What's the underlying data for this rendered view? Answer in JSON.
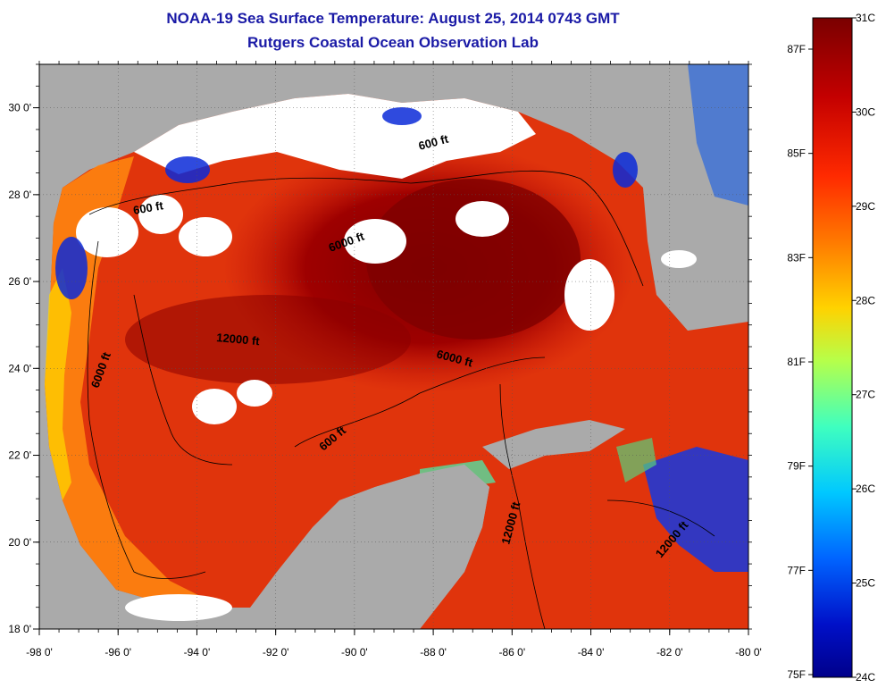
{
  "header": {
    "title": "NOAA-19 Sea Surface Temperature:  August 25, 2014 0743 GMT",
    "subtitle": "Rutgers Coastal Ocean Observation Lab"
  },
  "axes": {
    "lon_ticks": [
      "-98 0'",
      "-96 0'",
      "-94 0'",
      "-92 0'",
      "-90 0'",
      "-88 0'",
      "-86 0'",
      "-84 0'",
      "-82 0'",
      "-80 0'"
    ],
    "lat_ticks": [
      "30 0'",
      "28 0'",
      "26 0'",
      "24 0'",
      "22 0'",
      "20 0'",
      "18 0'"
    ],
    "lon_range": [
      -98,
      -80
    ],
    "lat_range": [
      18,
      31
    ]
  },
  "contour_labels": [
    "600 ft",
    "600 ft",
    "6000 ft",
    "12000 ft",
    "6000 ft",
    "6000 ft",
    "600 ft",
    "12000 ft",
    "12000 ft"
  ],
  "colorbar": {
    "celsius": [
      "31C",
      "30C",
      "29C",
      "28C",
      "27C",
      "26C",
      "25C",
      "24C"
    ],
    "fahrenheit": [
      "87F",
      "85F",
      "83F",
      "81F",
      "79F",
      "77F",
      "75F"
    ],
    "colors": [
      "#7a0000",
      "#c40000",
      "#ff2a00",
      "#ff7a00",
      "#ffd200",
      "#b6ff4a",
      "#3fffbf",
      "#00c8ff",
      "#0064ff",
      "#0010c8",
      "#00008a"
    ]
  },
  "colors": {
    "land": "#aaaaaa",
    "cloud": "#ffffff",
    "warm_core": "#8b0000",
    "warm": "#d41a0a",
    "mid": "#ff6a00",
    "cool": "#0a2ad8"
  }
}
